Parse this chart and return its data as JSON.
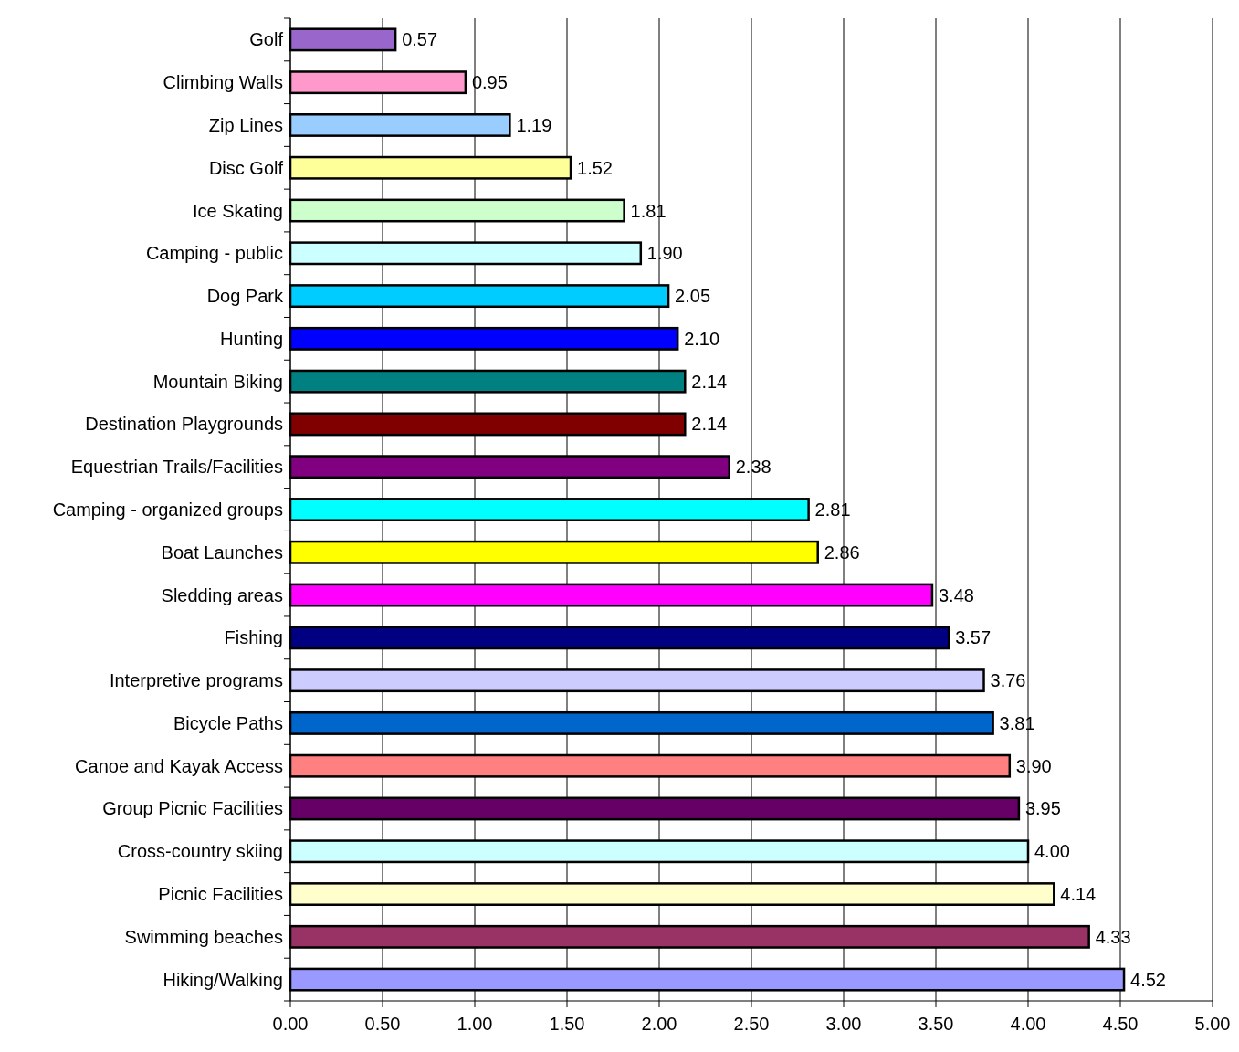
{
  "chart_data": {
    "type": "bar",
    "orientation": "horizontal",
    "categories": [
      "Golf",
      "Climbing Walls",
      "Zip Lines",
      "Disc Golf",
      "Ice Skating",
      "Camping - public",
      "Dog Park",
      "Hunting",
      "Mountain Biking",
      "Destination Playgrounds",
      "Equestrian Trails/Facilities",
      "Camping - organized groups",
      "Boat Launches",
      "Sledding areas",
      "Fishing",
      "Interpretive programs",
      "Bicycle Paths",
      "Canoe and Kayak Access",
      "Group Picnic Facilities",
      "Cross-country skiing",
      "Picnic Facilities",
      "Swimming beaches",
      "Hiking/Walking"
    ],
    "values": [
      0.57,
      0.95,
      1.19,
      1.52,
      1.81,
      1.9,
      2.05,
      2.1,
      2.14,
      2.14,
      2.38,
      2.81,
      2.86,
      3.48,
      3.57,
      3.76,
      3.81,
      3.9,
      3.95,
      4.0,
      4.14,
      4.33,
      4.52
    ],
    "value_labels": [
      "0.57",
      "0.95",
      "1.19",
      "1.52",
      "1.81",
      "1.90",
      "2.05",
      "2.10",
      "2.14",
      "2.14",
      "2.38",
      "2.81",
      "2.86",
      "3.48",
      "3.57",
      "3.76",
      "3.81",
      "3.90",
      "3.95",
      "4.00",
      "4.14",
      "4.33",
      "4.52"
    ],
    "colors": [
      "#9966cc",
      "#ff99cc",
      "#99ccff",
      "#ffff99",
      "#ccffcc",
      "#ccffff",
      "#00ccff",
      "#0000ff",
      "#008080",
      "#800000",
      "#800080",
      "#00ffff",
      "#ffff00",
      "#ff00ff",
      "#000080",
      "#ccccff",
      "#0066cc",
      "#ff8080",
      "#660066",
      "#ccffff",
      "#ffffcc",
      "#993366",
      "#9999ff"
    ],
    "xlim": [
      0,
      5
    ],
    "xticks": [
      {
        "value": 0,
        "label": "0.00"
      },
      {
        "value": 0.5,
        "label": "0.50"
      },
      {
        "value": 1,
        "label": "1.00"
      },
      {
        "value": 1.5,
        "label": "1.50"
      },
      {
        "value": 2,
        "label": "2.00"
      },
      {
        "value": 2.5,
        "label": "2.50"
      },
      {
        "value": 3,
        "label": "3.00"
      },
      {
        "value": 3.5,
        "label": "3.50"
      },
      {
        "value": 4,
        "label": "4.00"
      },
      {
        "value": 4.5,
        "label": "4.50"
      },
      {
        "value": 5,
        "label": "5.00"
      }
    ],
    "grid": "x"
  }
}
